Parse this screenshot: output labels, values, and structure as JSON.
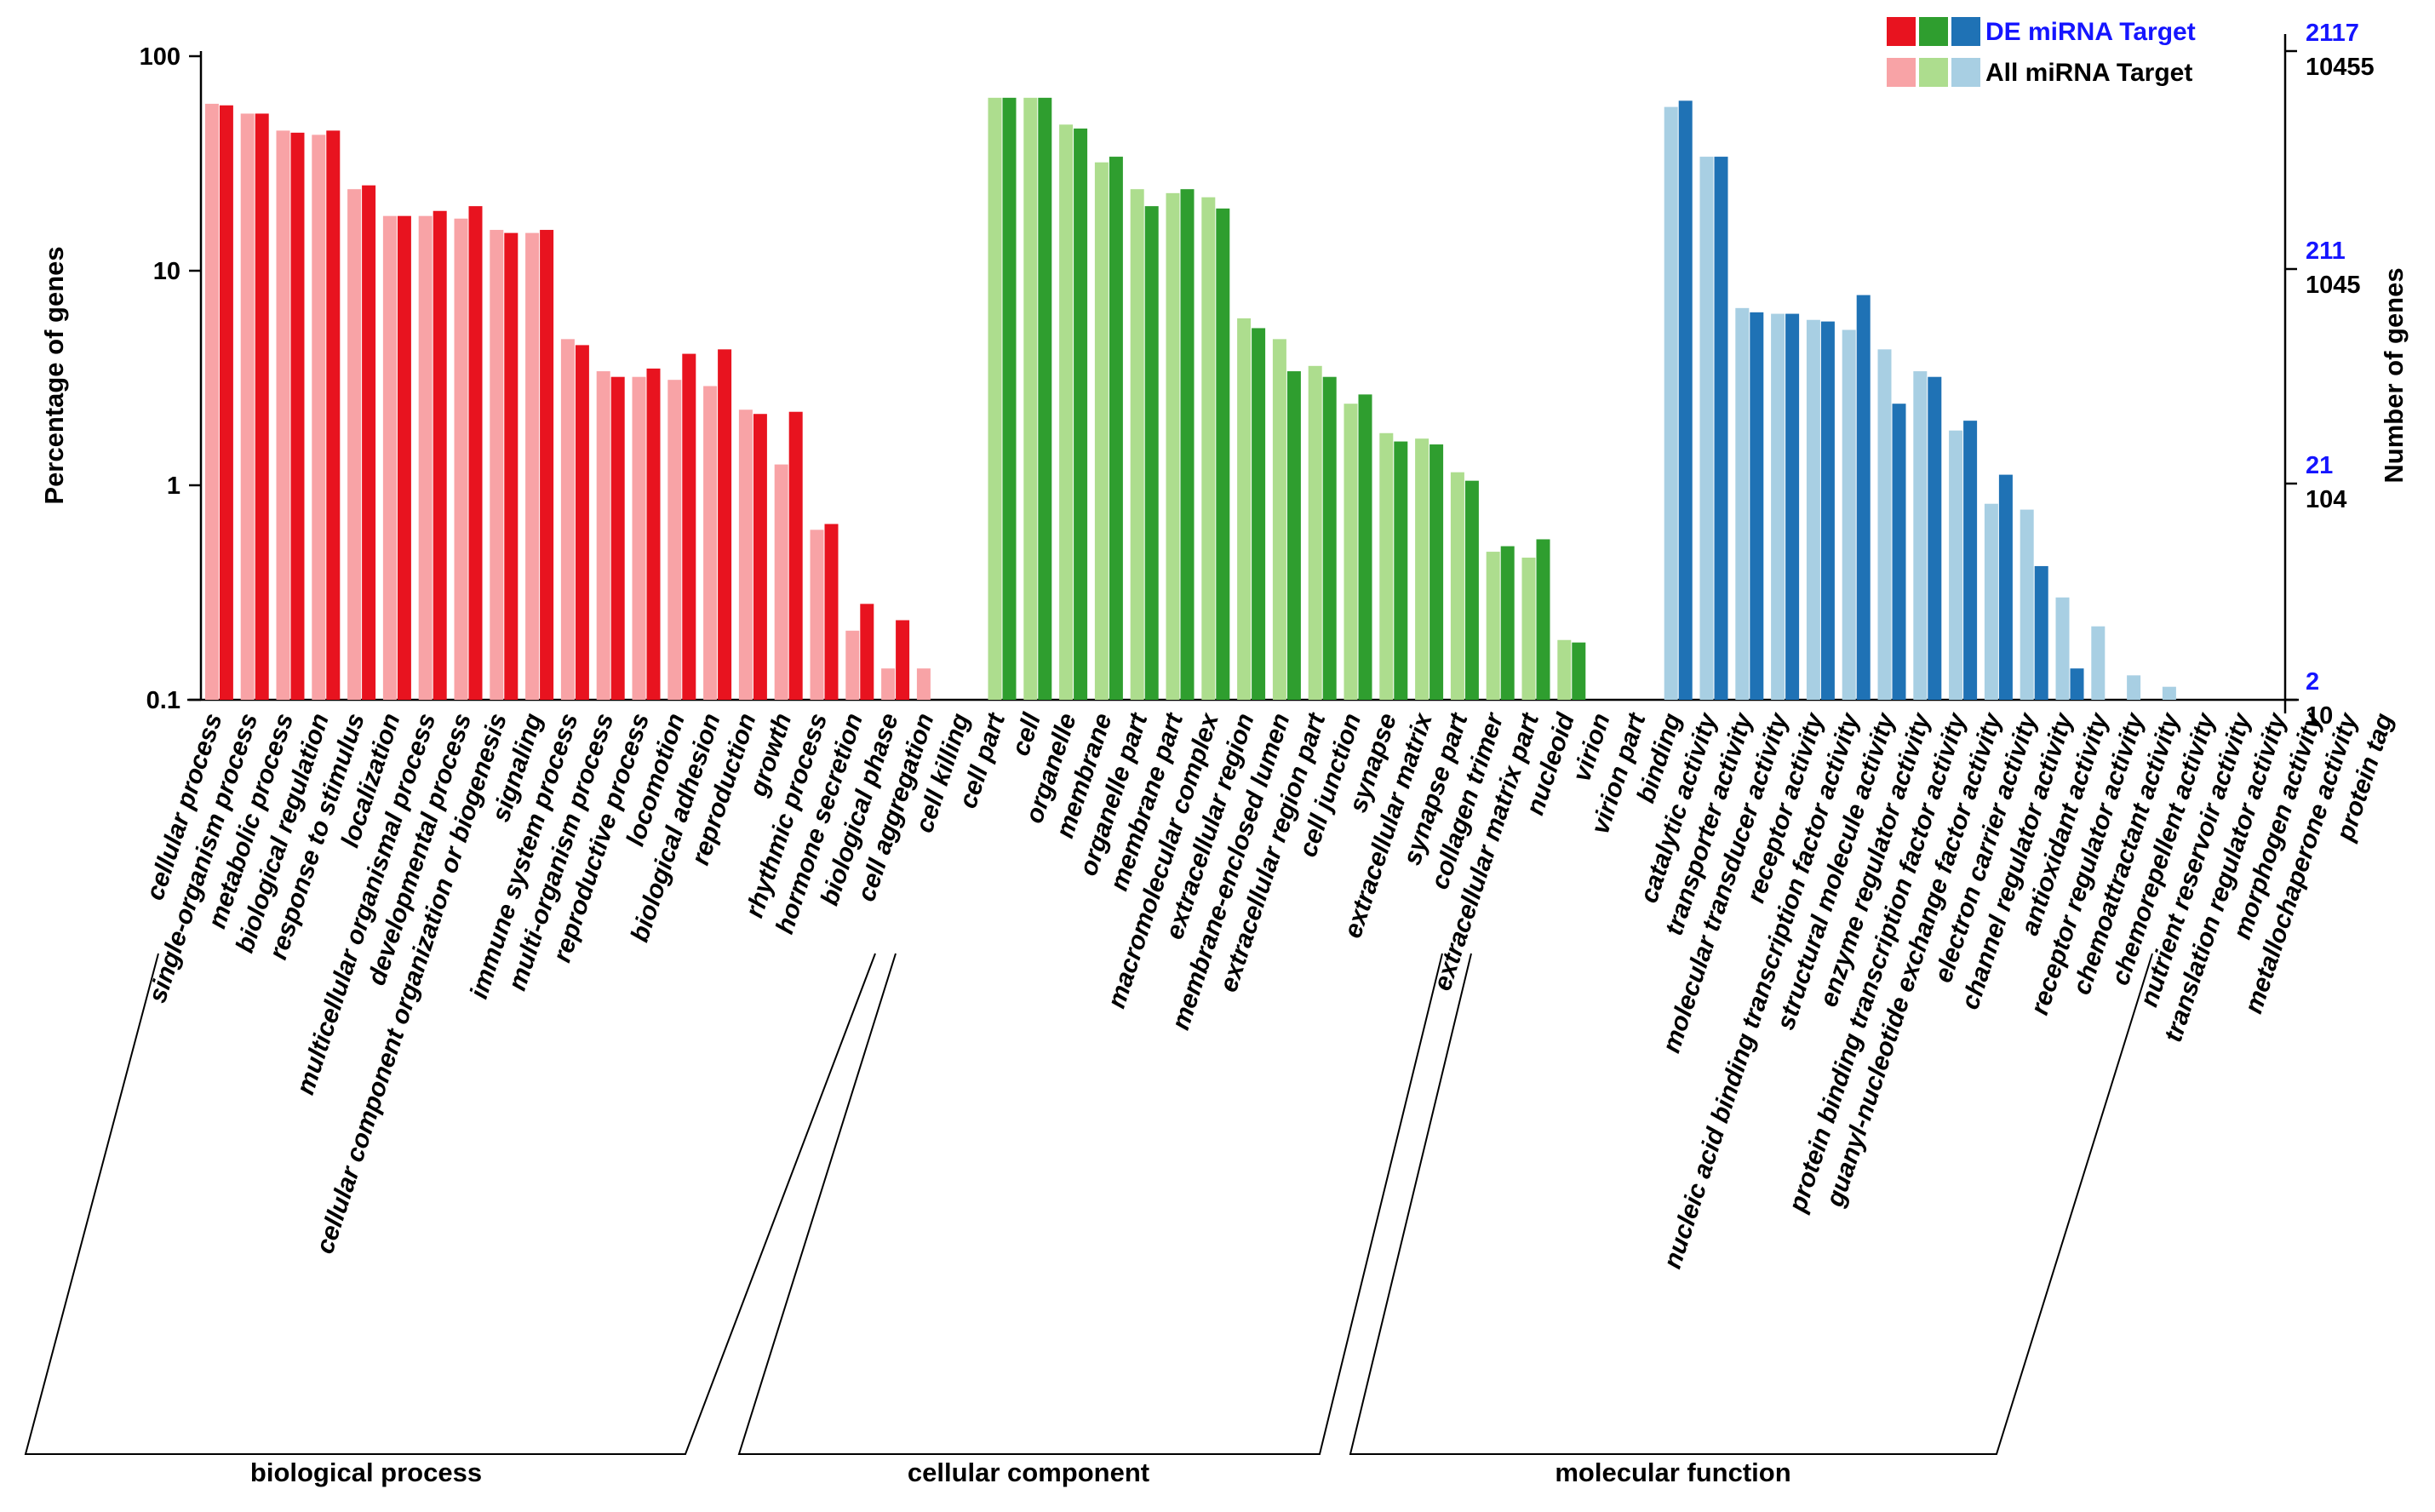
{
  "chart_data": {
    "type": "bar",
    "scale": "log",
    "y_left": {
      "label": "Percentage of genes",
      "ticks": [
        0.1,
        1,
        10,
        100
      ],
      "tick_labels": [
        "0.1",
        "1",
        "10",
        "100"
      ],
      "lim": [
        0.1,
        100
      ]
    },
    "y_right": {
      "label": "Number of genes",
      "de_ticks": [
        "2117",
        "211",
        "21",
        "2"
      ],
      "all_ticks": [
        "10455",
        "1045",
        "104",
        "10"
      ]
    },
    "legend": [
      {
        "name": "DE miRNA Target",
        "colors": [
          "#e8131f",
          "#2f9e2f",
          "#1f72b5"
        ],
        "text_color": "#1515ff"
      },
      {
        "name": "All miRNA Target",
        "colors": [
          "#f8a3a6",
          "#addd8e",
          "#a8cfe3"
        ],
        "text_color": "#000000"
      }
    ],
    "groups": [
      {
        "name": "biological process",
        "dark_color": "#e8131f",
        "light_color": "#f8a3a6",
        "categories": [
          {
            "label": "cellular process",
            "all": 60,
            "de": 59
          },
          {
            "label": "single-organism process",
            "all": 54,
            "de": 54
          },
          {
            "label": "metabolic process",
            "all": 45,
            "de": 44
          },
          {
            "label": "biological regulation",
            "all": 43,
            "de": 45
          },
          {
            "label": "response to stimulus",
            "all": 24,
            "de": 25
          },
          {
            "label": "localization",
            "all": 18,
            "de": 18
          },
          {
            "label": "multicellular organismal process",
            "all": 18,
            "de": 19
          },
          {
            "label": "developmental process",
            "all": 17.5,
            "de": 20
          },
          {
            "label": "cellular component organization or biogenesis",
            "all": 15.5,
            "de": 15
          },
          {
            "label": "signaling",
            "all": 15,
            "de": 15.5
          },
          {
            "label": "immune system process",
            "all": 4.8,
            "de": 4.5
          },
          {
            "label": "multi-organism process",
            "all": 3.4,
            "de": 3.2
          },
          {
            "label": "reproductive process",
            "all": 3.2,
            "de": 3.5
          },
          {
            "label": "locomotion",
            "all": 3.1,
            "de": 4.1
          },
          {
            "label": "biological adhesion",
            "all": 2.9,
            "de": 4.3
          },
          {
            "label": "reproduction",
            "all": 2.25,
            "de": 2.15
          },
          {
            "label": "growth",
            "all": 1.25,
            "de": 2.2
          },
          {
            "label": "rhythmic process",
            "all": 0.62,
            "de": 0.66
          },
          {
            "label": "hormone secretion",
            "all": 0.21,
            "de": 0.28
          },
          {
            "label": "biological phase",
            "all": 0.14,
            "de": 0.235
          },
          {
            "label": "cell aggregation",
            "all": 0.14,
            "de": null
          },
          {
            "label": "cell killing",
            "all": null,
            "de": null
          }
        ]
      },
      {
        "name": "cellular component",
        "dark_color": "#2f9e2f",
        "light_color": "#addd8e",
        "categories": [
          {
            "label": "cell part",
            "all": 64,
            "de": 64
          },
          {
            "label": "cell",
            "all": 64,
            "de": 64
          },
          {
            "label": "organelle",
            "all": 48,
            "de": 46
          },
          {
            "label": "membrane",
            "all": 32,
            "de": 34
          },
          {
            "label": "organelle part",
            "all": 24,
            "de": 20
          },
          {
            "label": "membrane part",
            "all": 23,
            "de": 24
          },
          {
            "label": "macromolecular complex",
            "all": 22,
            "de": 19.5
          },
          {
            "label": "extracellular region",
            "all": 6,
            "de": 5.4
          },
          {
            "label": "membrane-enclosed lumen",
            "all": 4.8,
            "de": 3.4
          },
          {
            "label": "extracellular region part",
            "all": 3.6,
            "de": 3.2
          },
          {
            "label": "cell junction",
            "all": 2.4,
            "de": 2.65
          },
          {
            "label": "synapse",
            "all": 1.75,
            "de": 1.6
          },
          {
            "label": "extracellular matrix",
            "all": 1.65,
            "de": 1.55
          },
          {
            "label": "synapse part",
            "all": 1.15,
            "de": 1.05
          },
          {
            "label": "collagen trimer",
            "all": 0.49,
            "de": 0.52
          },
          {
            "label": "extracellular matrix part",
            "all": 0.46,
            "de": 0.56
          },
          {
            "label": "nucleoid",
            "all": 0.19,
            "de": 0.185
          },
          {
            "label": "virion",
            "all": null,
            "de": null
          },
          {
            "label": "virion part",
            "all": null,
            "de": null
          }
        ]
      },
      {
        "name": "molecular function",
        "dark_color": "#1f72b5",
        "light_color": "#a8cfe3",
        "categories": [
          {
            "label": "binding",
            "all": 58,
            "de": 62
          },
          {
            "label": "catalytic activity",
            "all": 34,
            "de": 34
          },
          {
            "label": "transporter activity",
            "all": 6.7,
            "de": 6.4
          },
          {
            "label": "molecular transducer activity",
            "all": 6.3,
            "de": 6.3
          },
          {
            "label": "receptor activity",
            "all": 5.9,
            "de": 5.8
          },
          {
            "label": "nucleic acid binding transcription factor activity",
            "all": 5.3,
            "de": 7.7
          },
          {
            "label": "structural molecule activity",
            "all": 4.3,
            "de": 2.4
          },
          {
            "label": "enzyme regulator activity",
            "all": 3.4,
            "de": 3.2
          },
          {
            "label": "protein binding transcription factor activity",
            "all": 1.8,
            "de": 2
          },
          {
            "label": "guanyl-nucleotide exchange factor activity",
            "all": 0.82,
            "de": 1.12
          },
          {
            "label": "electron carrier activity",
            "all": 0.77,
            "de": 0.42
          },
          {
            "label": "channel regulator activity",
            "all": 0.3,
            "de": 0.14
          },
          {
            "label": "antioxidant activity",
            "all": 0.22,
            "de": null
          },
          {
            "label": "receptor regulator activity",
            "all": 0.13,
            "de": null
          },
          {
            "label": "chemoattractant activity",
            "all": 0.115,
            "de": null
          },
          {
            "label": "chemorepellent activity",
            "all": null,
            "de": null
          },
          {
            "label": "nutrient reservoir activity",
            "all": null,
            "de": null
          },
          {
            "label": "translation regulator activity",
            "all": null,
            "de": null
          },
          {
            "label": "morphogen activity",
            "all": null,
            "de": null
          },
          {
            "label": "metallochaperone activity",
            "all": null,
            "de": null
          },
          {
            "label": "protein tag",
            "all": null,
            "de": null
          }
        ]
      }
    ]
  }
}
